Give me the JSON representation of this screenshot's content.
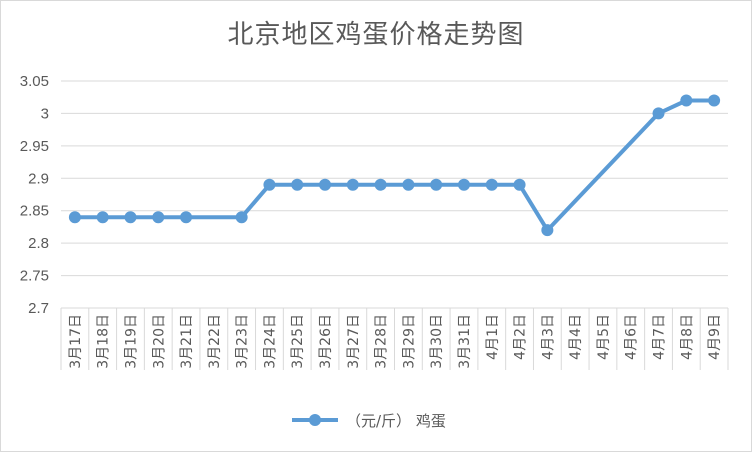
{
  "chart_data": {
    "type": "line",
    "title": "北京地区鸡蛋价格走势图",
    "categories": [
      "3月17日",
      "3月18日",
      "3月19日",
      "3月20日",
      "3月21日",
      "3月22日",
      "3月23日",
      "3月24日",
      "3月25日",
      "3月26日",
      "3月27日",
      "3月28日",
      "3月29日",
      "3月30日",
      "3月31日",
      "4月1日",
      "4月2日",
      "4月3日",
      "4月4日",
      "4月5日",
      "4月6日",
      "4月7日",
      "4月8日",
      "4月9日"
    ],
    "series": [
      {
        "name": "（元/斤） 鸡蛋",
        "color": "#5b9bd5",
        "values": [
          2.84,
          2.84,
          2.84,
          2.84,
          2.84,
          null,
          2.84,
          2.89,
          2.89,
          2.89,
          2.89,
          2.89,
          2.89,
          2.89,
          2.89,
          2.89,
          2.89,
          2.82,
          null,
          null,
          null,
          3.0,
          3.02,
          3.02
        ]
      }
    ],
    "ylim": [
      2.7,
      3.05
    ],
    "yticks": [
      2.7,
      2.75,
      2.8,
      2.85,
      2.9,
      2.95,
      3,
      3.05
    ],
    "ytick_labels": [
      "2.7",
      "2.75",
      "2.8",
      "2.85",
      "2.9",
      "2.95",
      "3",
      "3.05"
    ],
    "xlabel": "",
    "ylabel": "",
    "grid": true,
    "legend_position": "bottom",
    "gridline_color": "#d9d9d9",
    "axis_text_color": "#595959"
  }
}
